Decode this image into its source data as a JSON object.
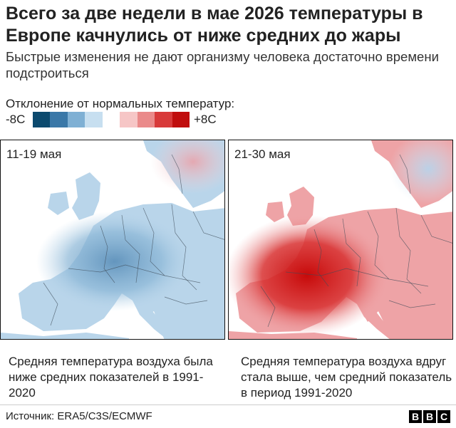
{
  "title": "Всего за две недели в мае 2026 температуры в Европе качнулись от ниже средних до жары",
  "subtitle": "Быстрые изменения не дают организму человека достаточно времени подстроиться",
  "legend": {
    "title": "Отклонение от нормальных температур:",
    "min_label": "-8C",
    "max_label": "+8C",
    "colors": [
      "#0c4a6e",
      "#3a78a8",
      "#7fb0d4",
      "#c7dff0",
      "#ffffff",
      "#f6c6c6",
      "#ea8a8a",
      "#d83a3a",
      "#c00d0d"
    ]
  },
  "panels": [
    {
      "label": "11-19 мая",
      "caption": "Средняя температура воздуха была ниже средних показателей в 1991-2020",
      "anomaly": "below",
      "land_color": "#b9d5ea",
      "core_color": "#6e9ec4",
      "north_color": "#f0c4c8"
    },
    {
      "label": "21-30 мая",
      "caption": "Средняя температура воздуха вдруг стала выше, чем средний показатель в период 1991-2020",
      "anomaly": "above",
      "land_color": "#eea3a6",
      "core_color": "#d11414",
      "north_color": "#c9def0"
    }
  ],
  "source": "Источник: ERA5/C3S/ECMWF",
  "brand": [
    "B",
    "B",
    "C"
  ]
}
